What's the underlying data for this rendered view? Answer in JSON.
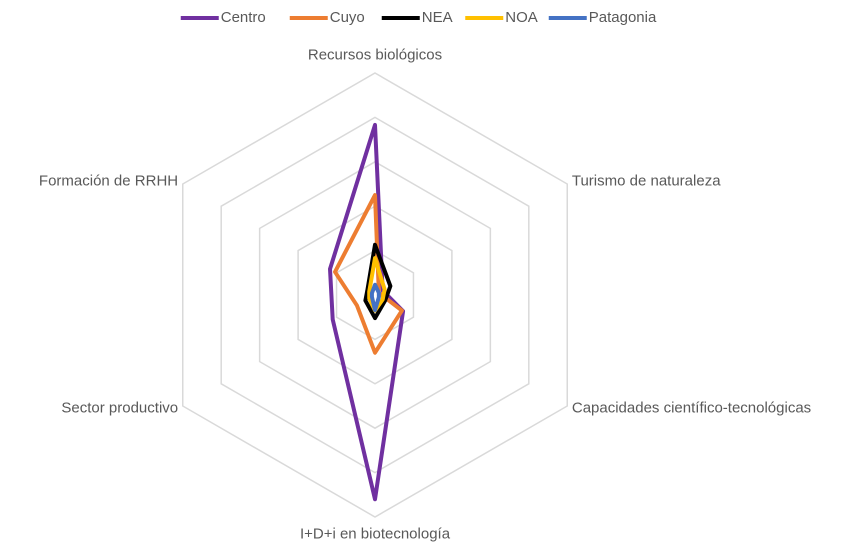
{
  "chart_data": {
    "type": "radar",
    "categories": [
      "Recursos biológicos",
      "Turismo de naturaleza",
      "Capacidades científico-tecnológicas",
      "I+D+i en biotecnología",
      "Sector productivo",
      "Formación de RRHH"
    ],
    "series": [
      {
        "name": "Centro",
        "color": "#7030a0",
        "values": [
          3.83,
          0.2,
          0.73,
          4.6,
          1.1,
          1.17
        ]
      },
      {
        "name": "Cuyo",
        "color": "#ed7d31",
        "values": [
          2.25,
          0.1,
          0.7,
          1.3,
          0.47,
          1.04
        ]
      },
      {
        "name": "NEA",
        "color": "#000000",
        "values": [
          1.13,
          0.4,
          0.26,
          0.52,
          0.25,
          0.2
        ]
      },
      {
        "name": "NOA",
        "color": "#ffc000",
        "values": [
          0.83,
          0.25,
          0.2,
          0.35,
          0.15,
          0.15
        ]
      },
      {
        "name": "Patagonia",
        "color": "#4472c4",
        "values": [
          0.23,
          0.1,
          0.1,
          0.34,
          0.08,
          0.08
        ]
      }
    ],
    "ylim": [
      0,
      5
    ],
    "yticks": [
      1,
      2,
      3,
      4,
      5
    ],
    "grid": true,
    "legend": "top"
  }
}
